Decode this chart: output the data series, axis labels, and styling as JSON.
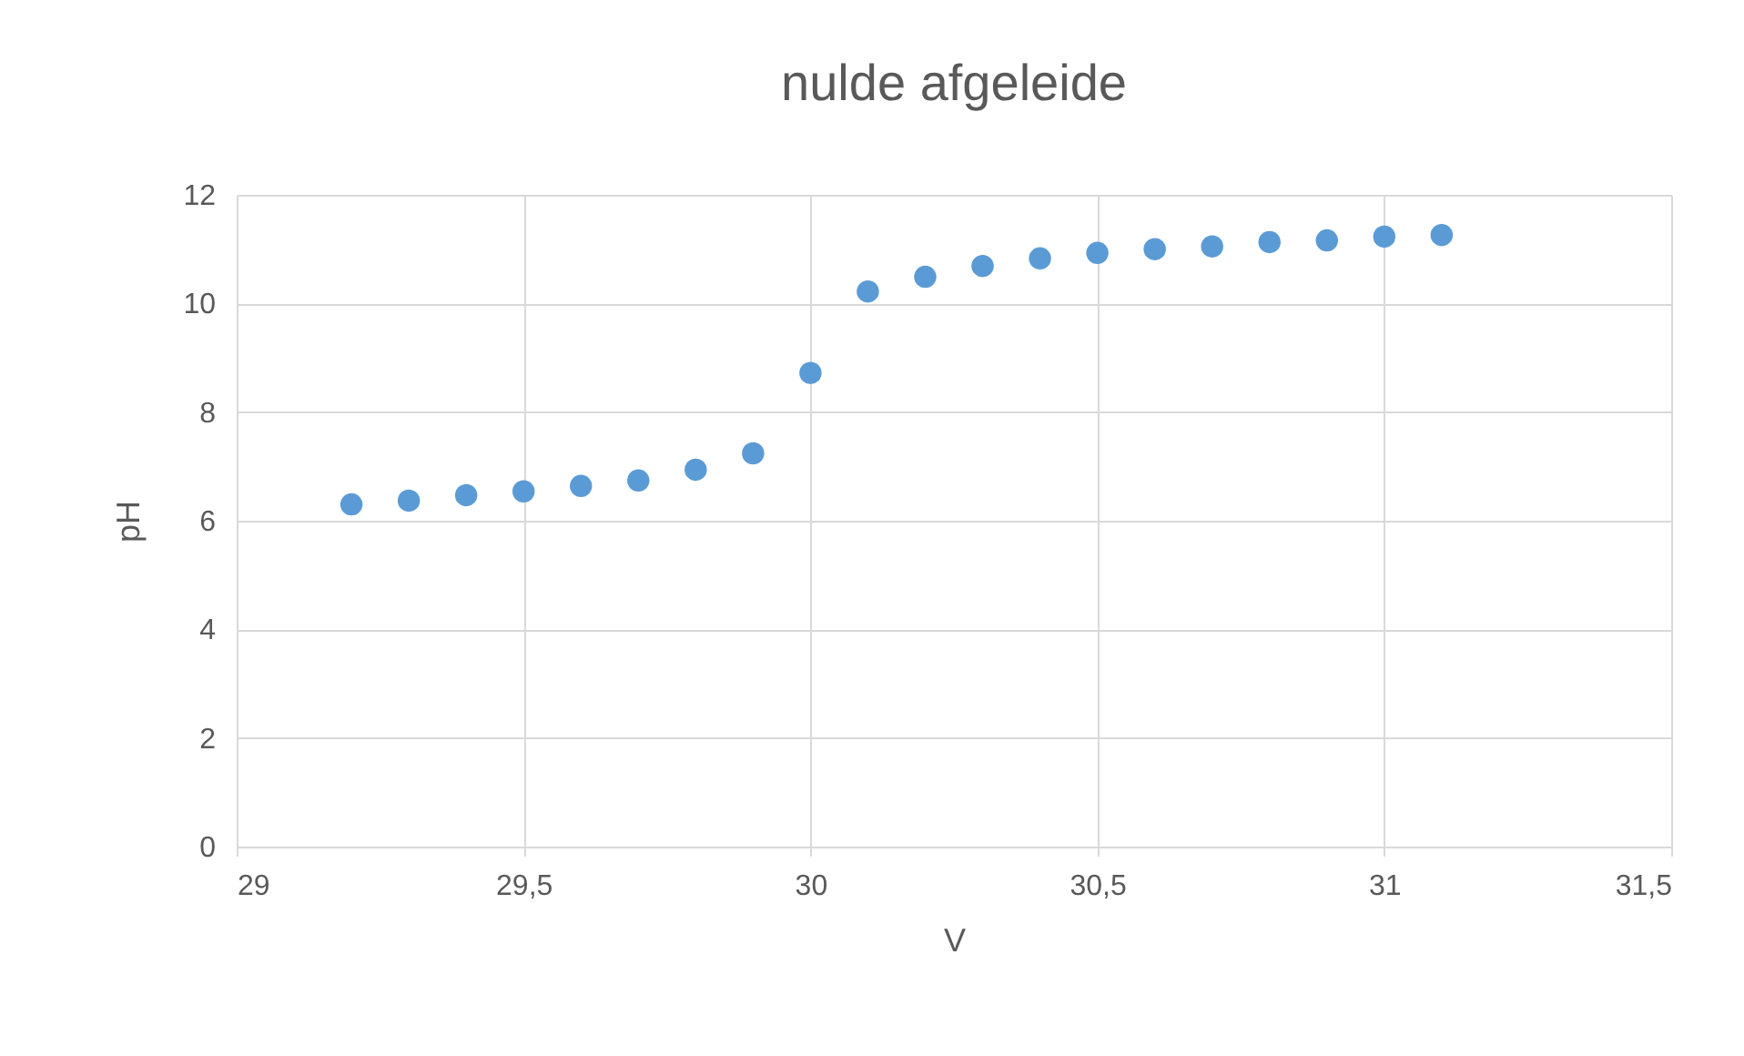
{
  "chart_data": {
    "type": "scatter",
    "title": "nulde afgeleide",
    "xlabel": "V",
    "ylabel": "pH",
    "x": [
      29.2,
      29.3,
      29.4,
      29.5,
      29.6,
      29.7,
      29.8,
      29.9,
      30.0,
      30.1,
      30.2,
      30.3,
      30.4,
      30.5,
      30.6,
      30.7,
      30.8,
      30.9,
      31.0,
      31.1
    ],
    "series": [
      {
        "color": "#5b9bd5",
        "values": [
          6.3,
          6.37,
          6.47,
          6.54,
          6.64,
          6.74,
          6.94,
          7.24,
          8.72,
          10.22,
          10.49,
          10.69,
          10.83,
          10.93,
          11.0,
          11.05,
          11.13,
          11.16,
          11.23,
          11.26
        ]
      }
    ],
    "xlim": [
      29,
      31.5
    ],
    "xticks": [
      29,
      {
        "value": 29.5,
        "label": "29,5"
      },
      30,
      {
        "value": 30.5,
        "label": "30,5"
      },
      31,
      {
        "value": 31.5,
        "label": "31,5"
      }
    ],
    "ylim": [
      0,
      12
    ],
    "yticks": [
      0,
      2,
      4,
      6,
      8,
      10,
      12
    ],
    "grid": true,
    "marker": "circle"
  }
}
